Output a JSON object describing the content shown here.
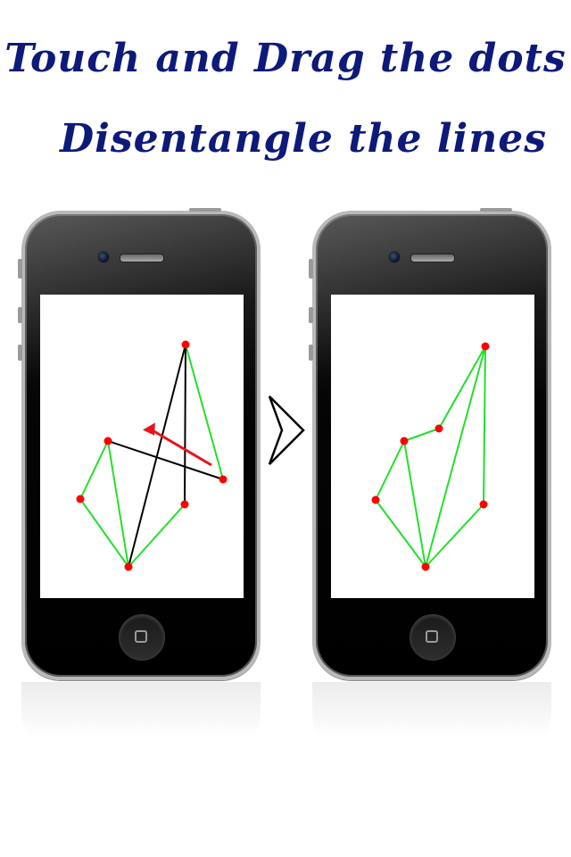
{
  "headline": {
    "line1": "Touch and Drag the dots",
    "line2": "Disentangle the lines"
  },
  "colors": {
    "headline": "#0d1a7a",
    "dot": "#ff0000",
    "untangled_edge": "#22e02a",
    "crossing_edge": "#000000",
    "drag_arrow": "#e8141b"
  },
  "icons": {
    "next": "chevron-right-icon",
    "home": "home-button-icon"
  }
}
